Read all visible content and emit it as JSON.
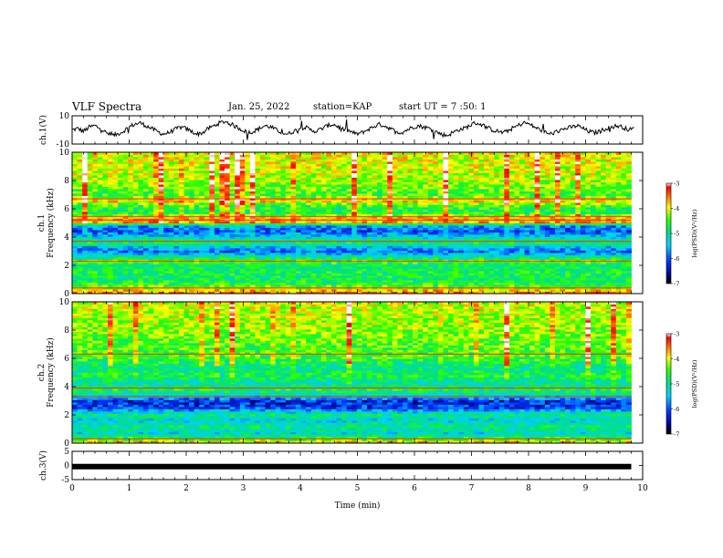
{
  "header": {
    "title": "VLF Spectra",
    "date": "Jan. 25, 2022",
    "station": "station=KAP",
    "start_ut": "start UT =  7 :50: 1"
  },
  "chart_data": [
    {
      "type": "line",
      "panel": "ch1-waveform",
      "ylabel": "ch.1(V)",
      "ylim": [
        -10,
        10
      ],
      "y_ticks": [
        "10",
        "-10"
      ],
      "x_range": [
        0,
        10
      ],
      "note_style": "noisy black trace",
      "samples": [
        0,
        1,
        -1,
        2,
        3,
        1,
        -2,
        -4,
        -3,
        -1,
        2,
        4,
        5,
        3,
        1,
        -1,
        -3,
        -2,
        0,
        2,
        1,
        -1,
        -3,
        -2,
        1,
        3,
        5,
        6,
        4,
        2,
        0,
        -2,
        -1,
        1,
        3,
        2,
        0,
        -2,
        -3,
        -1,
        1,
        2,
        0,
        -1,
        1,
        3,
        4,
        2,
        0,
        -1,
        -3,
        -2,
        0,
        2,
        4,
        3,
        1,
        -1,
        -2,
        0,
        2,
        3,
        2,
        1,
        -1,
        -3,
        -4,
        -2,
        0,
        1,
        3,
        5,
        4,
        2,
        0,
        -1,
        -2,
        0,
        2,
        4,
        5,
        3,
        1,
        -1,
        -3,
        -2,
        0,
        1,
        2,
        3,
        1,
        -1,
        -2,
        -1,
        1,
        2,
        3,
        2,
        0,
        1
      ]
    },
    {
      "type": "heatmap",
      "panel": "ch1-spectrogram",
      "ylabel": "ch.1\nFrequency  (kHz)",
      "ylim": [
        0,
        10
      ],
      "y_ticks": [
        "0",
        "2",
        "4",
        "6",
        "8",
        "10"
      ],
      "x_range": [
        0,
        10
      ],
      "colorbar": {
        "label": "log(PSD)(V²/Hz)",
        "range": [
          -7,
          -3
        ],
        "ticks": [
          "-3",
          "-4",
          "-5",
          "-6",
          "-7"
        ]
      },
      "freq_profile_khz": [
        {
          "f": 0.0,
          "level": -3.6
        },
        {
          "f": 0.3,
          "level": -3.9
        },
        {
          "f": 0.5,
          "level": -4.5
        },
        {
          "f": 1.0,
          "level": -4.9
        },
        {
          "f": 1.5,
          "level": -4.8
        },
        {
          "f": 2.0,
          "level": -5.0
        },
        {
          "f": 2.3,
          "level": -4.4
        },
        {
          "f": 2.6,
          "level": -5.1
        },
        {
          "f": 3.0,
          "level": -6.0
        },
        {
          "f": 3.3,
          "level": -5.6
        },
        {
          "f": 3.6,
          "level": -4.8
        },
        {
          "f": 4.0,
          "level": -5.4
        },
        {
          "f": 4.4,
          "level": -6.1
        },
        {
          "f": 4.8,
          "level": -5.8
        },
        {
          "f": 5.1,
          "level": -3.6
        },
        {
          "f": 5.4,
          "level": -3.9
        },
        {
          "f": 5.8,
          "level": -4.9
        },
        {
          "f": 6.3,
          "level": -4.5
        },
        {
          "f": 6.6,
          "level": -3.8
        },
        {
          "f": 7.0,
          "level": -4.6
        },
        {
          "f": 8.0,
          "level": -4.2
        },
        {
          "f": 9.0,
          "level": -4.1
        },
        {
          "f": 10.0,
          "level": -4.0
        }
      ]
    },
    {
      "type": "heatmap",
      "panel": "ch2-spectrogram",
      "ylabel": "ch.2\nFrequency  (kHz)",
      "ylim": [
        0,
        10
      ],
      "y_ticks": [
        "0",
        "2",
        "4",
        "6",
        "8",
        "10"
      ],
      "x_range": [
        0,
        10
      ],
      "colorbar": {
        "label": "log(PSD)(V²/Hz)",
        "range": [
          -7,
          -3
        ],
        "ticks": [
          "-3",
          "-4",
          "-5",
          "-6",
          "-7"
        ]
      },
      "freq_profile_khz": [
        {
          "f": 0.0,
          "level": -3.6
        },
        {
          "f": 0.3,
          "level": -4.6
        },
        {
          "f": 0.7,
          "level": -5.4
        },
        {
          "f": 1.2,
          "level": -5.0
        },
        {
          "f": 1.6,
          "level": -5.5
        },
        {
          "f": 2.0,
          "level": -5.0
        },
        {
          "f": 2.5,
          "level": -6.1
        },
        {
          "f": 3.0,
          "level": -6.3
        },
        {
          "f": 3.4,
          "level": -5.3
        },
        {
          "f": 3.8,
          "level": -4.8
        },
        {
          "f": 4.3,
          "level": -5.2
        },
        {
          "f": 4.8,
          "level": -4.7
        },
        {
          "f": 5.3,
          "level": -5.1
        },
        {
          "f": 6.0,
          "level": -4.6
        },
        {
          "f": 7.0,
          "level": -4.5
        },
        {
          "f": 8.0,
          "level": -4.3
        },
        {
          "f": 9.0,
          "level": -4.2
        },
        {
          "f": 10.0,
          "level": -4.1
        }
      ]
    },
    {
      "type": "line",
      "panel": "ch3-waveform",
      "ylabel": "ch.3(V)",
      "ylim": [
        -5,
        5
      ],
      "y_ticks": [
        "5",
        "0",
        "-5"
      ],
      "x_range": [
        0,
        9.8
      ],
      "level": -0.4,
      "xlabel": "Time  (min)",
      "x_ticks": [
        "0",
        "1",
        "2",
        "3",
        "4",
        "5",
        "6",
        "7",
        "8",
        "9",
        "10"
      ]
    }
  ]
}
